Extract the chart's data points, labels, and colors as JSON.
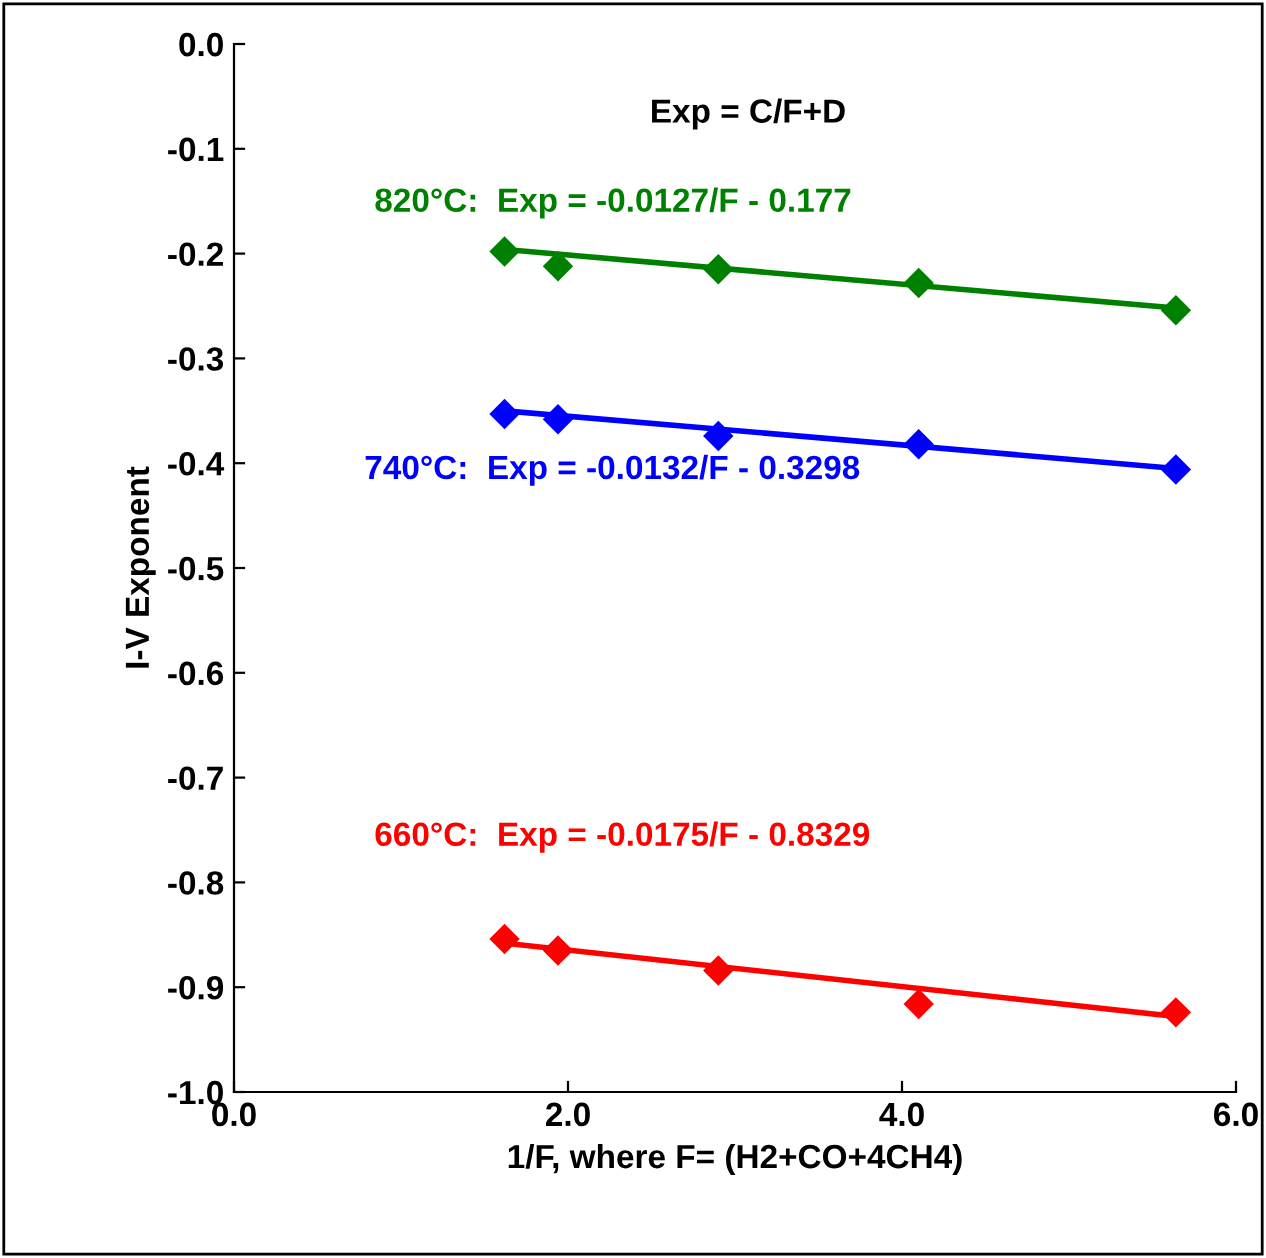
{
  "chart_data": {
    "type": "scatter",
    "xlabel": "1/F, where F= (H2+CO+4CH4)",
    "ylabel": "I-V Exponent",
    "xlim": [
      0.0,
      6.0
    ],
    "xticks": [
      {
        "value": 0,
        "label": "0.0"
      },
      {
        "value": 2,
        "label": "2.0"
      },
      {
        "value": 4,
        "label": "4.0"
      },
      {
        "value": 6,
        "label": "6.0"
      }
    ],
    "ylim": [
      -1.0,
      0.0
    ],
    "yticks": [
      {
        "value": -1.0,
        "label": "-1.0"
      },
      {
        "value": -0.9,
        "label": "-0.9"
      },
      {
        "value": -0.8,
        "label": "-0.8"
      },
      {
        "value": -0.7,
        "label": "-0.7"
      },
      {
        "value": -0.6,
        "label": "-0.6"
      },
      {
        "value": -0.5,
        "label": "-0.5"
      },
      {
        "value": -0.4,
        "label": "-0.4"
      },
      {
        "value": -0.3,
        "label": "-0.3"
      },
      {
        "value": -0.2,
        "label": "-0.2"
      },
      {
        "value": -0.1,
        "label": "-0.1"
      },
      {
        "value": 0.0,
        "label": "0.0"
      }
    ],
    "grid": false,
    "marker": "diamond",
    "series": [
      {
        "color": "#008000",
        "x": [
          1.62,
          1.94,
          2.9,
          4.1,
          5.64
        ],
        "values": [
          -0.198,
          -0.212,
          -0.215,
          -0.228,
          -0.254
        ]
      },
      {
        "color": "#0000ff",
        "x": [
          1.62,
          1.94,
          2.9,
          4.1,
          5.64
        ],
        "values": [
          -0.353,
          -0.358,
          -0.374,
          -0.382,
          -0.406
        ]
      },
      {
        "color": "#ff0000",
        "x": [
          1.62,
          1.94,
          2.9,
          4.1,
          5.64
        ],
        "values": [
          -0.854,
          -0.865,
          -0.884,
          -0.916,
          -0.924
        ]
      },
      {
        "type": "line",
        "marker": "none",
        "color": "#008000",
        "x": [
          1.62,
          5.64
        ],
        "values": [
          -0.196,
          -0.252
        ]
      },
      {
        "type": "line",
        "marker": "none",
        "color": "#0000ff",
        "x": [
          1.62,
          5.64
        ],
        "values": [
          -0.35,
          -0.405
        ]
      },
      {
        "type": "line",
        "marker": "none",
        "color": "#ff0000",
        "x": [
          1.62,
          5.64
        ],
        "values": [
          -0.858,
          -0.928
        ]
      }
    ],
    "annotations": [
      "Exp = C/F+D",
      "820°C:  Exp = -0.0127/F - 0.177",
      "740°C:  Exp = -0.0132/F - 0.3298",
      "660°C:  Exp = -0.0175/F - 0.8329"
    ]
  }
}
